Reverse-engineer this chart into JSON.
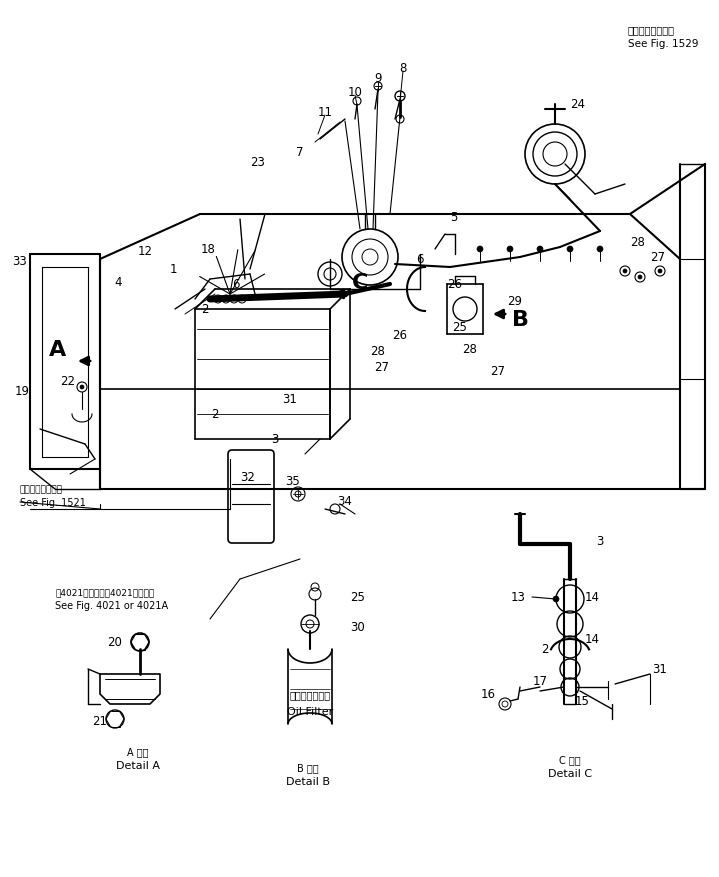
{
  "fig_width": 7.19,
  "fig_height": 8.78,
  "dpi": 100,
  "bg_color": "#ffffff",
  "lc": "#000000",
  "title_jp": "第１５２９図参照",
  "title_en": "See Fig. 1529",
  "fig1521_jp": "第１５２１図参照",
  "fig1521_en": "See Fig. 1521",
  "fig4021_jp": "第4021図または第4021Ａ図参照",
  "fig4021_en": "See Fig. 4021 or 4021A",
  "detail_a_jp": "A 詳細",
  "detail_a_en": "Detail A",
  "detail_b_jp": "B 詳細",
  "detail_b_en": "Detail B",
  "detail_c_jp": "C 詳細",
  "detail_c_en": "Detail C",
  "oil_filter_jp": "オイルフィルタ",
  "oil_filter_en": "Oil Filter"
}
